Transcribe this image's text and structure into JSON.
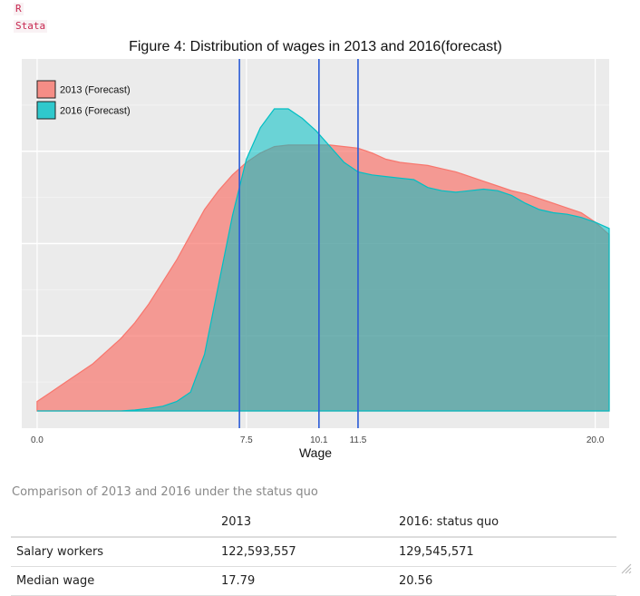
{
  "tabs": [
    {
      "label": "R"
    },
    {
      "label": "Stata"
    }
  ],
  "chart_data": {
    "type": "area",
    "title": "Figure 4: Distribution of wages in 2013 and 2016(forecast)",
    "xlabel": "Wage",
    "ylabel": "",
    "xlim": [
      0.0,
      20.0
    ],
    "ylim": [
      0,
      1.0
    ],
    "x_ticks": [
      "0.0",
      "7.5",
      "10.1",
      "11.5",
      "20.0"
    ],
    "x_tick_values": [
      0.0,
      7.5,
      10.1,
      11.5,
      20.0
    ],
    "vlines": [
      7.25,
      10.1,
      11.5
    ],
    "grid": true,
    "legend": "top-left",
    "series": [
      {
        "name": "2013 (Forecast)",
        "color": "#f8766d",
        "x": [
          0.0,
          0.5,
          1.0,
          1.5,
          2.0,
          2.5,
          3.0,
          3.5,
          4.0,
          4.5,
          5.0,
          5.5,
          6.0,
          6.5,
          7.0,
          7.5,
          8.0,
          8.5,
          9.0,
          9.5,
          10.0,
          10.5,
          11.0,
          11.5,
          12.0,
          12.5,
          13.0,
          13.5,
          14.0,
          14.5,
          15.0,
          15.5,
          16.0,
          16.5,
          17.0,
          17.5,
          18.0,
          18.5,
          19.0,
          19.5,
          20.0,
          20.5
        ],
        "y": [
          0.03,
          0.06,
          0.09,
          0.12,
          0.15,
          0.19,
          0.23,
          0.28,
          0.34,
          0.41,
          0.48,
          0.56,
          0.64,
          0.7,
          0.75,
          0.79,
          0.82,
          0.84,
          0.845,
          0.845,
          0.845,
          0.845,
          0.84,
          0.835,
          0.82,
          0.8,
          0.79,
          0.785,
          0.78,
          0.77,
          0.76,
          0.745,
          0.73,
          0.715,
          0.7,
          0.69,
          0.675,
          0.66,
          0.645,
          0.63,
          0.6,
          0.56
        ]
      },
      {
        "name": "2016 (Forecast)",
        "color": "#00bfc4",
        "x": [
          0.0,
          0.5,
          1.0,
          1.5,
          2.0,
          2.5,
          3.0,
          3.5,
          4.0,
          4.5,
          5.0,
          5.5,
          6.0,
          6.5,
          7.0,
          7.5,
          8.0,
          8.5,
          9.0,
          9.5,
          10.0,
          10.5,
          11.0,
          11.5,
          12.0,
          12.5,
          13.0,
          13.5,
          14.0,
          14.5,
          15.0,
          15.5,
          16.0,
          16.5,
          17.0,
          17.5,
          18.0,
          18.5,
          19.0,
          19.5,
          20.0,
          20.5
        ],
        "y": [
          0.0,
          0.0,
          0.0,
          0.0,
          0.0,
          0.0,
          0.0,
          0.003,
          0.008,
          0.015,
          0.03,
          0.06,
          0.18,
          0.4,
          0.62,
          0.8,
          0.9,
          0.96,
          0.96,
          0.93,
          0.89,
          0.84,
          0.79,
          0.76,
          0.75,
          0.745,
          0.74,
          0.735,
          0.71,
          0.7,
          0.695,
          0.7,
          0.705,
          0.7,
          0.685,
          0.66,
          0.64,
          0.63,
          0.625,
          0.615,
          0.6,
          0.58
        ]
      }
    ]
  },
  "table": {
    "caption": "Comparison of 2013 and 2016 under the status quo",
    "columns": [
      "",
      "2013",
      "2016: status quo"
    ],
    "rows": [
      [
        "Salary workers",
        "122,593,557",
        "129,545,571"
      ],
      [
        "Median wage",
        "17.79",
        "20.56"
      ]
    ]
  }
}
